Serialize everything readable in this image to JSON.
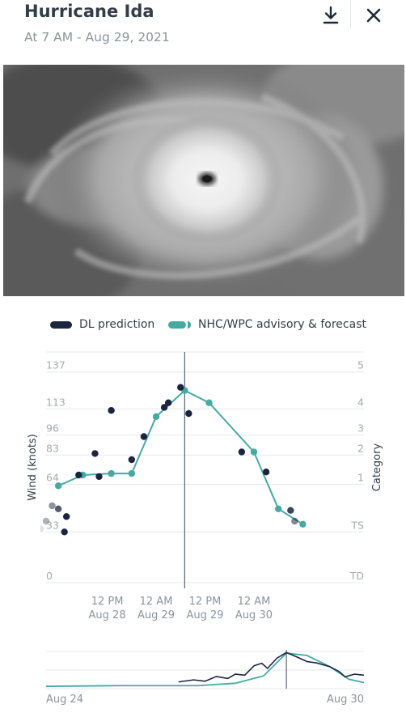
{
  "header": {
    "title": "Hurricane Ida",
    "subtitle": "At 7 AM - Aug 29, 2021"
  },
  "legend": {
    "dl": "DL prediction",
    "nhc": "NHC/WPC advisory & forecast"
  },
  "colors": {
    "dl": "#1b2540",
    "nhc": "#45aaa2",
    "grid": "#e6e9ec",
    "cursor": "#3a4560"
  },
  "chart_data": {
    "type": "line",
    "ylabel": "Wind (knots)",
    "y2label": "Category",
    "ylim": [
      0,
      150
    ],
    "y_ticks": [
      0,
      33,
      64,
      83,
      96,
      113,
      137
    ],
    "category_ticks": [
      {
        "label": "TD",
        "value": 0
      },
      {
        "label": "TS",
        "value": 33
      },
      {
        "label": "1",
        "value": 64
      },
      {
        "label": "2",
        "value": 83
      },
      {
        "label": "3",
        "value": 96
      },
      {
        "label": "4",
        "value": 113
      },
      {
        "label": "5",
        "value": 137
      }
    ],
    "x_unit": "hours since Aug 28 00:00",
    "xlim": [
      -3,
      75
    ],
    "x_ticks": [
      {
        "x": 12,
        "line1": "12 PM",
        "line2": "Aug 28"
      },
      {
        "x": 24,
        "line1": "12 AM",
        "line2": "Aug 29"
      },
      {
        "x": 36,
        "line1": "12 PM",
        "line2": "Aug 29"
      },
      {
        "x": 48,
        "line1": "12 AM",
        "line2": "Aug 30"
      }
    ],
    "cursor_x": 31,
    "series": [
      {
        "name": "DL prediction",
        "kind": "points",
        "points": [
          [
            -4.4,
            35,
            0.15
          ],
          [
            -3,
            40,
            0.35
          ],
          [
            -1.5,
            50,
            0.5
          ],
          [
            0,
            48,
            0.75
          ],
          [
            1.5,
            33,
            1
          ],
          [
            2,
            43,
            1
          ],
          [
            5,
            70,
            1
          ],
          [
            9,
            84,
            1
          ],
          [
            10,
            69,
            1
          ],
          [
            13,
            112,
            1
          ],
          [
            18,
            80,
            1
          ],
          [
            21,
            95,
            1
          ],
          [
            26,
            114,
            1
          ],
          [
            27,
            117,
            1
          ],
          [
            30,
            127,
            1
          ],
          [
            32,
            110,
            1
          ],
          [
            45,
            85,
            1
          ],
          [
            51,
            72,
            1
          ],
          [
            57,
            47,
            0.85
          ],
          [
            58,
            40,
            0.55
          ]
        ]
      },
      {
        "name": "NHC/WPC advisory & forecast",
        "kind": "line",
        "points": [
          [
            0,
            63
          ],
          [
            6,
            70
          ],
          [
            13,
            71
          ],
          [
            18,
            71
          ],
          [
            24,
            108
          ],
          [
            31,
            125
          ],
          [
            37,
            117
          ],
          [
            48,
            85
          ],
          [
            54,
            48
          ],
          [
            60,
            38
          ]
        ]
      }
    ]
  },
  "navigator": {
    "start_label": "Aug 24",
    "end_label": "Aug 30",
    "xlim": [
      0,
      168
    ],
    "ylim": [
      20,
      130
    ],
    "cursor_x": 127,
    "nhc_points": [
      [
        0,
        27
      ],
      [
        40,
        29
      ],
      [
        80,
        29
      ],
      [
        100,
        36
      ],
      [
        115,
        58
      ],
      [
        127,
        125
      ],
      [
        138,
        118
      ],
      [
        150,
        85
      ],
      [
        160,
        48
      ],
      [
        168,
        38
      ]
    ],
    "dl_points": [
      [
        70,
        40
      ],
      [
        78,
        46
      ],
      [
        84,
        42
      ],
      [
        90,
        56
      ],
      [
        96,
        50
      ],
      [
        100,
        63
      ],
      [
        105,
        60
      ],
      [
        110,
        88
      ],
      [
        114,
        95
      ],
      [
        117,
        80
      ],
      [
        122,
        110
      ],
      [
        127,
        127
      ],
      [
        132,
        115
      ],
      [
        138,
        100
      ],
      [
        143,
        96
      ],
      [
        150,
        85
      ],
      [
        155,
        70
      ],
      [
        158,
        55
      ],
      [
        163,
        63
      ],
      [
        168,
        60
      ]
    ]
  }
}
